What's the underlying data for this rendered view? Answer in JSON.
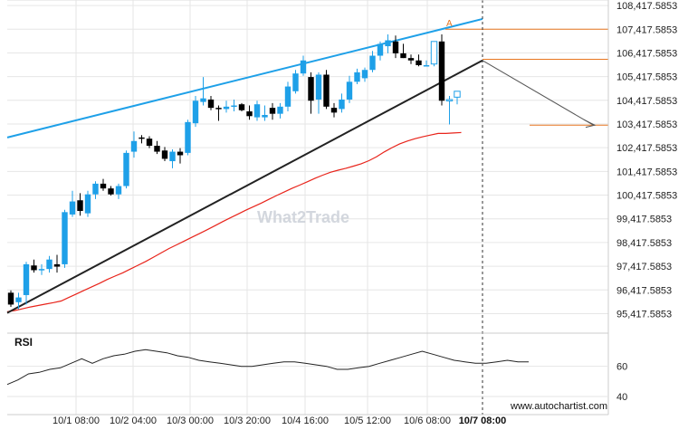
{
  "chart_data": {
    "type": "candlestick",
    "x_ticks": [
      "10/1 08:00",
      "10/2 04:00",
      "10/3 00:00",
      "10/3 20:00",
      "10/4 16:00",
      "10/5 12:00",
      "10/6 08:00"
    ],
    "highlight_x_label": "10/7 08:00",
    "y_ticks": [
      "108,417.5853",
      "107,417.5853",
      "106,417.5853",
      "105,417.5853",
      "104,417.5853",
      "103,417.5853",
      "102,417.5853",
      "101,417.5853",
      "100,417.5853",
      "99,417.5853",
      "98,417.5853",
      "97,417.5853",
      "96,417.5853",
      "95,417.5853"
    ],
    "y_tick_values": [
      108417.5853,
      107417.5853,
      106417.5853,
      105417.5853,
      104417.5853,
      103417.5853,
      102417.5853,
      101417.5853,
      100417.5853,
      99417.5853,
      98417.5853,
      97417.5853,
      96417.5853,
      95417.5853
    ],
    "ylim": [
      94900,
      108650
    ],
    "candles": [
      {
        "o": 96300,
        "h": 96400,
        "l": 95700,
        "c": 95800
      },
      {
        "o": 95900,
        "h": 96300,
        "l": 95600,
        "c": 96100
      },
      {
        "o": 96200,
        "h": 97600,
        "l": 95800,
        "c": 97500
      },
      {
        "o": 97450,
        "h": 97700,
        "l": 97150,
        "c": 97250
      },
      {
        "o": 97250,
        "h": 97500,
        "l": 97050,
        "c": 97300
      },
      {
        "o": 97300,
        "h": 97850,
        "l": 97150,
        "c": 97700
      },
      {
        "o": 97500,
        "h": 97900,
        "l": 97150,
        "c": 97400
      },
      {
        "o": 97500,
        "h": 99800,
        "l": 97350,
        "c": 99700
      },
      {
        "o": 99600,
        "h": 100600,
        "l": 99500,
        "c": 100150
      },
      {
        "o": 100200,
        "h": 100500,
        "l": 99550,
        "c": 99750
      },
      {
        "o": 99650,
        "h": 100600,
        "l": 99500,
        "c": 100450
      },
      {
        "o": 100450,
        "h": 101000,
        "l": 100250,
        "c": 100900
      },
      {
        "o": 100900,
        "h": 101100,
        "l": 100600,
        "c": 100700
      },
      {
        "o": 100700,
        "h": 100800,
        "l": 100400,
        "c": 100450
      },
      {
        "o": 100450,
        "h": 100900,
        "l": 100250,
        "c": 100800
      },
      {
        "o": 100800,
        "h": 102300,
        "l": 100700,
        "c": 102200
      },
      {
        "o": 102250,
        "h": 103100,
        "l": 102000,
        "c": 102700
      },
      {
        "o": 102850,
        "h": 102950,
        "l": 102600,
        "c": 102800
      },
      {
        "o": 102800,
        "h": 102900,
        "l": 102400,
        "c": 102500
      },
      {
        "o": 102500,
        "h": 102700,
        "l": 102150,
        "c": 102250
      },
      {
        "o": 102300,
        "h": 102450,
        "l": 101850,
        "c": 101950
      },
      {
        "o": 101850,
        "h": 102350,
        "l": 101550,
        "c": 102250
      },
      {
        "o": 102250,
        "h": 102400,
        "l": 101750,
        "c": 102100
      },
      {
        "o": 102200,
        "h": 103600,
        "l": 102100,
        "c": 103500
      },
      {
        "o": 103450,
        "h": 104600,
        "l": 103300,
        "c": 104400
      },
      {
        "o": 104350,
        "h": 105400,
        "l": 104200,
        "c": 104500
      },
      {
        "o": 104450,
        "h": 104600,
        "l": 104000,
        "c": 104100
      },
      {
        "o": 104100,
        "h": 104200,
        "l": 103550,
        "c": 104050
      },
      {
        "o": 104050,
        "h": 104400,
        "l": 103900,
        "c": 104150
      },
      {
        "o": 104150,
        "h": 104450,
        "l": 103950,
        "c": 104200
      },
      {
        "o": 104250,
        "h": 104300,
        "l": 103950,
        "c": 104000
      },
      {
        "o": 103950,
        "h": 104200,
        "l": 103600,
        "c": 103750
      },
      {
        "o": 103700,
        "h": 104400,
        "l": 103550,
        "c": 104250
      },
      {
        "o": 103700,
        "h": 104200,
        "l": 103550,
        "c": 103800
      },
      {
        "o": 104100,
        "h": 104300,
        "l": 103600,
        "c": 103850
      },
      {
        "o": 103850,
        "h": 104300,
        "l": 103650,
        "c": 104150
      },
      {
        "o": 104150,
        "h": 105200,
        "l": 103950,
        "c": 105000
      },
      {
        "o": 104800,
        "h": 105700,
        "l": 104700,
        "c": 105550
      },
      {
        "o": 105550,
        "h": 106300,
        "l": 105450,
        "c": 106100
      },
      {
        "o": 105400,
        "h": 105600,
        "l": 103850,
        "c": 104400
      },
      {
        "o": 104450,
        "h": 105600,
        "l": 103850,
        "c": 105500
      },
      {
        "o": 105500,
        "h": 105700,
        "l": 104050,
        "c": 104150
      },
      {
        "o": 104100,
        "h": 104300,
        "l": 103700,
        "c": 103900
      },
      {
        "o": 104050,
        "h": 104700,
        "l": 103900,
        "c": 104450
      },
      {
        "o": 104450,
        "h": 105450,
        "l": 104300,
        "c": 105200
      },
      {
        "o": 105200,
        "h": 105750,
        "l": 105100,
        "c": 105600
      },
      {
        "o": 105350,
        "h": 105800,
        "l": 105200,
        "c": 105700
      },
      {
        "o": 105700,
        "h": 106500,
        "l": 105600,
        "c": 106300
      },
      {
        "o": 106300,
        "h": 106900,
        "l": 106100,
        "c": 106800
      },
      {
        "o": 106700,
        "h": 107200,
        "l": 106400,
        "c": 106950
      },
      {
        "o": 106900,
        "h": 107150,
        "l": 106200,
        "c": 106400
      },
      {
        "o": 106400,
        "h": 106800,
        "l": 106200,
        "c": 106200
      },
      {
        "o": 106200,
        "h": 106350,
        "l": 105950,
        "c": 106100
      },
      {
        "o": 106100,
        "h": 106350,
        "l": 105850,
        "c": 105900
      },
      {
        "o": 105900,
        "h": 106100,
        "l": 105850,
        "c": 105900
      },
      {
        "o": 105950,
        "h": 106900,
        "l": 105850,
        "c": 106900,
        "dashed": true
      },
      {
        "o": 106900,
        "h": 107200,
        "l": 104200,
        "c": 104400
      },
      {
        "o": 104400,
        "h": 104600,
        "l": 103400,
        "c": 104450,
        "dashed": true
      },
      {
        "o": 104550,
        "h": 104800,
        "l": 104250,
        "c": 104800,
        "dashed": true
      }
    ],
    "moving_average": [
      95500,
      95550,
      95620,
      95700,
      95760,
      95820,
      95880,
      95950,
      96100,
      96250,
      96400,
      96550,
      96700,
      96860,
      97000,
      97140,
      97300,
      97460,
      97620,
      97800,
      97980,
      98160,
      98320,
      98480,
      98640,
      98800,
      98960,
      99130,
      99300,
      99460,
      99620,
      99780,
      99930,
      100080,
      100240,
      100400,
      100550,
      100700,
      100840,
      100980,
      101130,
      101260,
      101380,
      101470,
      101550,
      101640,
      101740,
      101870,
      102040,
      102240,
      102420,
      102580,
      102700,
      102800,
      102880,
      102950,
      103020,
      103020,
      103040,
      103060
    ],
    "rsi": [
      48,
      51,
      55,
      56,
      58,
      59,
      62,
      65,
      62,
      65,
      67,
      68,
      70,
      71,
      70,
      69,
      67,
      66,
      64,
      63,
      62,
      61,
      60,
      60,
      61,
      62,
      63,
      63,
      62,
      61,
      60,
      58,
      58,
      59,
      60,
      62,
      64,
      66,
      68,
      70,
      68,
      66,
      64,
      63,
      62,
      62,
      63,
      64,
      63,
      63
    ],
    "rsi_ticks": [
      "60",
      "40"
    ],
    "rsi_tick_values": [
      60,
      40
    ],
    "rsi_label": "RSI",
    "watermark": "What2Trade",
    "pattern_label": "A",
    "website": "www.autochartist.com",
    "colors": {
      "bull": "#1ea0e8",
      "bear": "#000000",
      "ma": "#e8241b",
      "resistance": "#1ea0e8",
      "support": "#222222",
      "level": "#e87620",
      "projection": "#555555",
      "grid": "#e6e6e6"
    }
  }
}
